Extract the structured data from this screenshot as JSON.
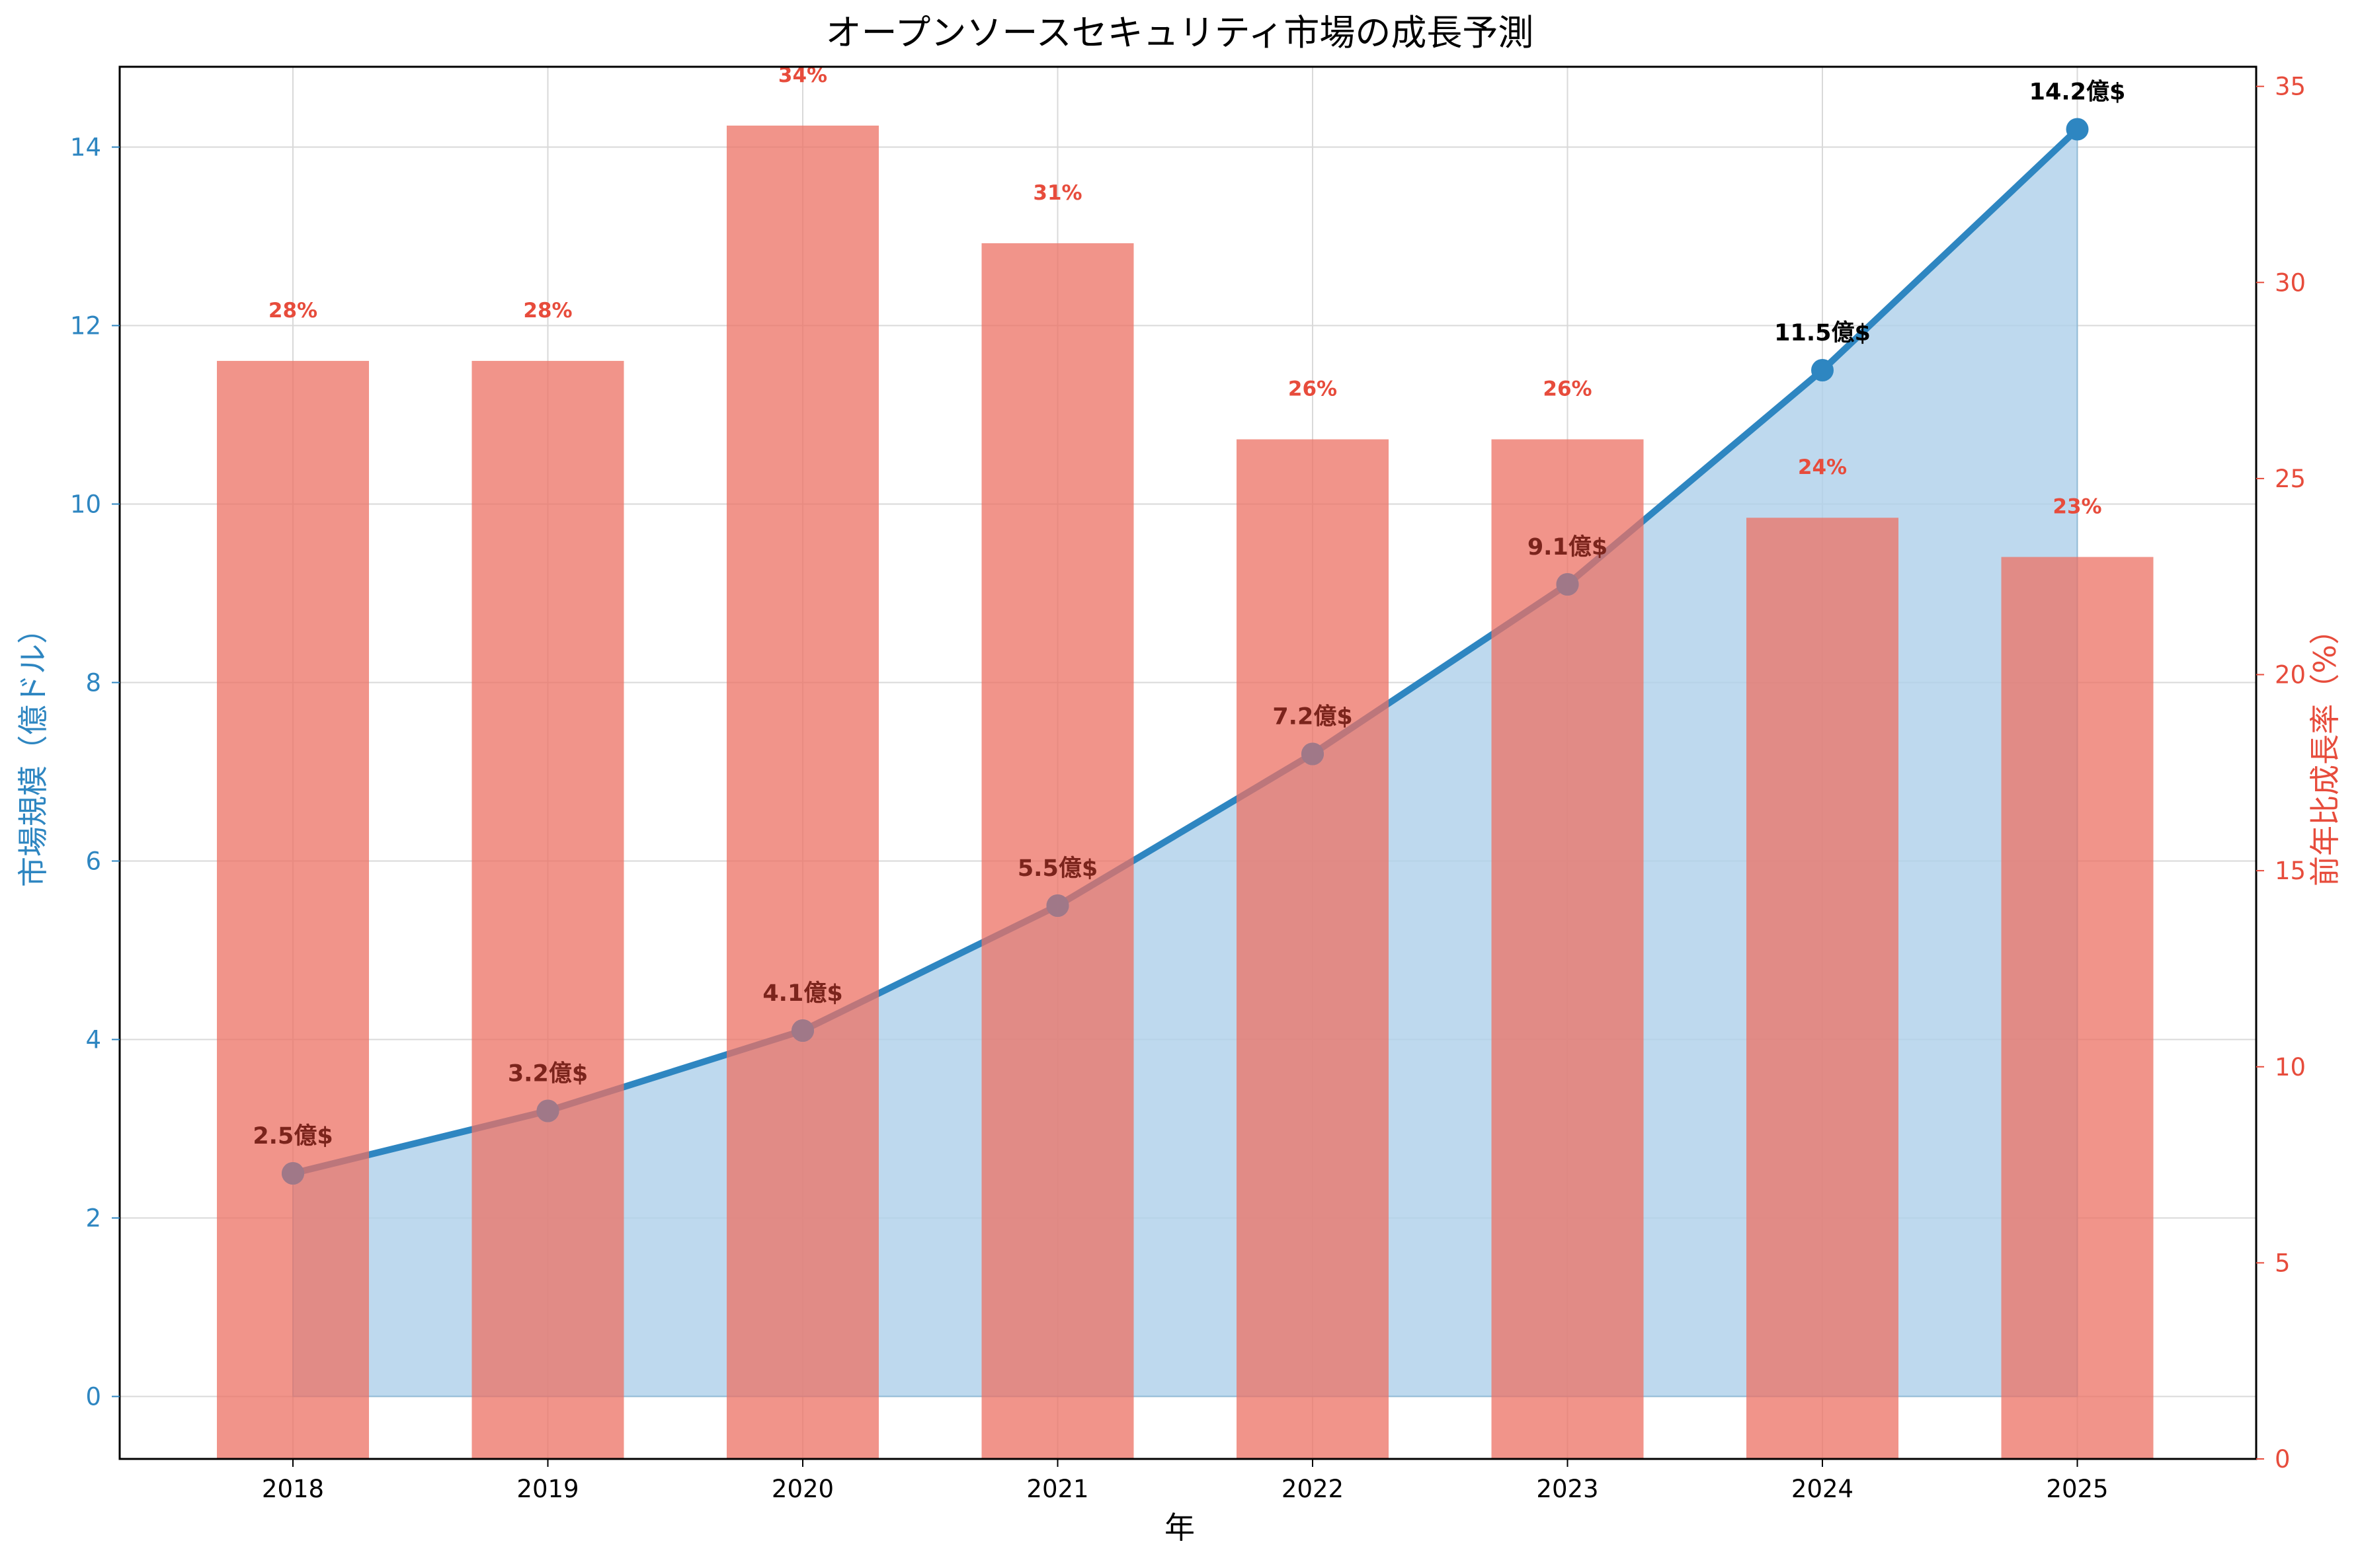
{
  "chart_data": {
    "type": "bar+line",
    "title": "オープンソースセキュリティ市場の成長予測",
    "xlabel": "年",
    "ylabel_left": "市場規模（億ドル）",
    "ylabel_right": "前年比成長率（%）",
    "categories": [
      "2018",
      "2019",
      "2020",
      "2021",
      "2022",
      "2023",
      "2024",
      "2025"
    ],
    "ylim_left": [
      -0.7,
      14.9
    ],
    "ylim_right": [
      0,
      35.5
    ],
    "yticks_left": [
      "0",
      "2",
      "4",
      "6",
      "8",
      "10",
      "12",
      "14"
    ],
    "yticks_right": [
      "0",
      "5",
      "10",
      "15",
      "20",
      "25",
      "30",
      "35"
    ],
    "grid": true,
    "series": [
      {
        "kind": "line",
        "axis": "left",
        "values": [
          2.5,
          3.2,
          4.1,
          5.5,
          7.2,
          9.1,
          11.5,
          14.2
        ],
        "point_labels": [
          "2.5億$",
          "3.2億$",
          "4.1億$",
          "5.5億$",
          "7.2億$",
          "9.1億$",
          "11.5億$",
          "14.2億$"
        ],
        "color": "#2e86c1",
        "fill_color": "#aed0ea"
      },
      {
        "kind": "bar",
        "axis": "right",
        "values": [
          28,
          28,
          34,
          31,
          26,
          26,
          24,
          23
        ],
        "bar_labels": [
          "28%",
          "28%",
          "34%",
          "31%",
          "26%",
          "26%",
          "24%",
          "23%"
        ],
        "color": "#ec7063"
      }
    ],
    "colors": {
      "left_axis": "#2e86c1",
      "right_axis": "#e74c3c",
      "point_label_over_bar": "#7b241c",
      "point_label_plain": "#000000",
      "bar_label": "#e74c3c",
      "grid": "#d9d9d9"
    }
  }
}
